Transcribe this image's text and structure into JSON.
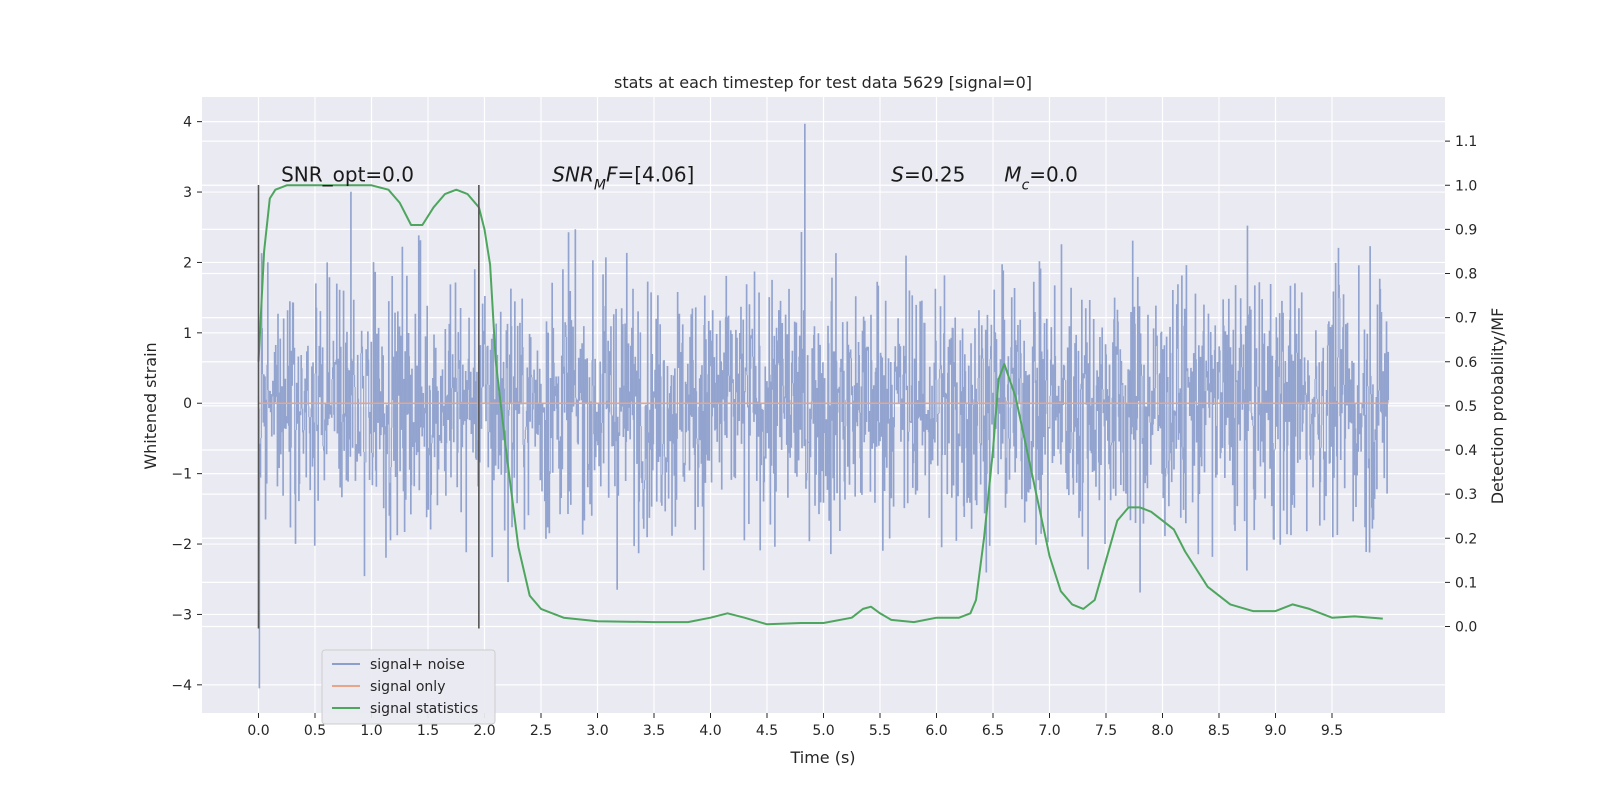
{
  "chart_data": {
    "type": "line",
    "title": "stats at each timestep for test data 5629 [signal=0]",
    "xlabel": "Time (s)",
    "ylabel": "Whitened strain",
    "y2label": "Detection probability/MF",
    "xlim": [
      -0.5,
      10.5
    ],
    "ylim": [
      -4.4,
      4.35
    ],
    "y2lim": [
      -0.196,
      1.2
    ],
    "x_ticks": [
      0.0,
      0.5,
      1.0,
      1.5,
      2.0,
      2.5,
      3.0,
      3.5,
      4.0,
      4.5,
      5.0,
      5.5,
      6.0,
      6.5,
      7.0,
      7.5,
      8.0,
      8.5,
      9.0,
      9.5
    ],
    "x_tick_labels": [
      "0.0",
      "0.5",
      "1.0",
      "1.5",
      "2.0",
      "2.5",
      "3.0",
      "3.5",
      "4.0",
      "4.5",
      "5.0",
      "5.5",
      "6.0",
      "6.5",
      "7.0",
      "7.5",
      "8.0",
      "8.5",
      "9.0",
      "9.5"
    ],
    "y_ticks": [
      4,
      3,
      2,
      1,
      0,
      -1,
      -2,
      -3,
      -4
    ],
    "y_tick_labels": [
      "4",
      "3",
      "2",
      "1",
      "0",
      "−1",
      "−2",
      "−3",
      "−4"
    ],
    "y2_ticks": [
      1.1,
      1.0,
      0.9,
      0.8,
      0.7,
      0.6,
      0.5,
      0.4,
      0.3,
      0.2,
      0.1,
      0.0
    ],
    "y2_tick_labels": [
      "1.1",
      "1.0",
      "0.9",
      "0.8",
      "0.7",
      "0.6",
      "0.5",
      "0.4",
      "0.3",
      "0.2",
      "0.1",
      "0.0"
    ],
    "grid": true,
    "legend_position": "lower-left",
    "series": [
      {
        "name": "signal+ noise",
        "axis": "left",
        "color": "#8c9fcb",
        "kind": "noise",
        "x_range": [
          0.0,
          10.0
        ],
        "sample_count": 2000,
        "spread": 0.9,
        "peak_max": 3.97,
        "peak_min": -4.05
      },
      {
        "name": "signal only",
        "axis": "left",
        "color": "#e8a58a",
        "x": [
          0.0,
          10.0
        ],
        "y": [
          0.0,
          0.0
        ]
      },
      {
        "name": "signal statistics",
        "axis": "right",
        "color": "#4ea65e",
        "x": [
          0.0,
          0.05,
          0.1,
          0.15,
          0.25,
          0.4,
          0.6,
          0.8,
          1.0,
          1.15,
          1.25,
          1.35,
          1.45,
          1.55,
          1.65,
          1.75,
          1.85,
          1.95,
          2.0,
          2.05,
          2.1,
          2.2,
          2.3,
          2.4,
          2.5,
          2.7,
          3.0,
          3.5,
          3.8,
          4.0,
          4.15,
          4.3,
          4.5,
          4.8,
          5.0,
          5.25,
          5.35,
          5.42,
          5.5,
          5.6,
          5.8,
          6.0,
          6.2,
          6.3,
          6.35,
          6.42,
          6.5,
          6.55,
          6.6,
          6.7,
          6.8,
          6.9,
          7.0,
          7.1,
          7.2,
          7.3,
          7.4,
          7.5,
          7.6,
          7.7,
          7.8,
          7.9,
          8.0,
          8.1,
          8.2,
          8.4,
          8.6,
          8.8,
          9.0,
          9.15,
          9.3,
          9.5,
          9.7,
          9.95
        ],
        "y": [
          0.6,
          0.85,
          0.97,
          0.99,
          1.0,
          1.0,
          1.0,
          1.0,
          1.0,
          0.99,
          0.96,
          0.91,
          0.91,
          0.95,
          0.98,
          0.99,
          0.98,
          0.95,
          0.9,
          0.82,
          0.6,
          0.38,
          0.18,
          0.07,
          0.04,
          0.02,
          0.012,
          0.01,
          0.01,
          0.02,
          0.03,
          0.02,
          0.005,
          0.008,
          0.008,
          0.02,
          0.04,
          0.045,
          0.03,
          0.015,
          0.01,
          0.02,
          0.02,
          0.03,
          0.06,
          0.2,
          0.4,
          0.56,
          0.595,
          0.52,
          0.4,
          0.28,
          0.16,
          0.08,
          0.05,
          0.04,
          0.06,
          0.15,
          0.24,
          0.27,
          0.27,
          0.26,
          0.24,
          0.22,
          0.17,
          0.09,
          0.05,
          0.035,
          0.035,
          0.05,
          0.04,
          0.02,
          0.023,
          0.018
        ]
      }
    ],
    "vlines": [
      {
        "x": 0.0,
        "y_from": -3.2,
        "y_to": 3.1,
        "color": "#555555"
      },
      {
        "x": 1.95,
        "y_from": -3.2,
        "y_to": 3.1,
        "color": "#555555"
      }
    ],
    "annotations": [
      {
        "x": 0.2,
        "y": 3.15,
        "parts": [
          {
            "t": "SNR_opt=0.0"
          }
        ]
      },
      {
        "x": 2.6,
        "y": 3.15,
        "parts": [
          {
            "t": "SNR",
            "i": true
          },
          {
            "t": "M",
            "i": true,
            "sub": true
          },
          {
            "t": "F",
            "i": true
          },
          {
            "t": "=[4.06]"
          }
        ]
      },
      {
        "x": 5.6,
        "y": 3.15,
        "parts": [
          {
            "t": "S",
            "i": true
          },
          {
            "t": "=0.25"
          }
        ]
      },
      {
        "x": 6.6,
        "y": 3.15,
        "parts": [
          {
            "t": "M",
            "i": true
          },
          {
            "t": "c",
            "i": true,
            "sub": true
          },
          {
            "t": "=0.0"
          }
        ]
      }
    ]
  }
}
